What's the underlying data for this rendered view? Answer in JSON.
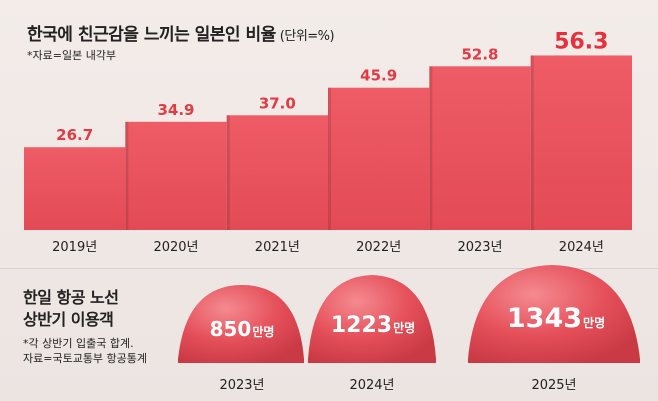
{
  "title": "한국에 친근감을 느끼는 일본인 비율",
  "unit": "(단위=%)",
  "source": "*자료=일본 내각부",
  "chart_data": {
    "type": "bar",
    "title": "한국에 친근감을 느끼는 일본인 비율",
    "categories": [
      "2019년",
      "2020년",
      "2021년",
      "2022년",
      "2023년",
      "2024년"
    ],
    "values": [
      26.7,
      34.9,
      37.0,
      45.9,
      52.8,
      56.3
    ],
    "value_labels": [
      "26.7",
      "34.9",
      "37.0",
      "45.9",
      "52.8",
      "56.3"
    ],
    "highlight_index": 5,
    "ylim": [
      0,
      60
    ],
    "grid": false,
    "colors": {
      "bar": "#e8515b",
      "bar_top": "#f06a72",
      "label": "#e23b45",
      "highlight_label": "#e8303c"
    }
  },
  "section2": {
    "title_line1": "한일 항공 노선",
    "title_line2": "상반기 이용객",
    "note_line1": "*각 상반기 입출국 합계.",
    "note_line2": "자료=국토교통부 항공통계",
    "items": [
      {
        "value": "850",
        "unit": "만명",
        "year": "2023년"
      },
      {
        "value": "1223",
        "unit": "만명",
        "year": "2024년"
      },
      {
        "value": "1343",
        "unit": "만명",
        "year": "2025년"
      }
    ]
  }
}
